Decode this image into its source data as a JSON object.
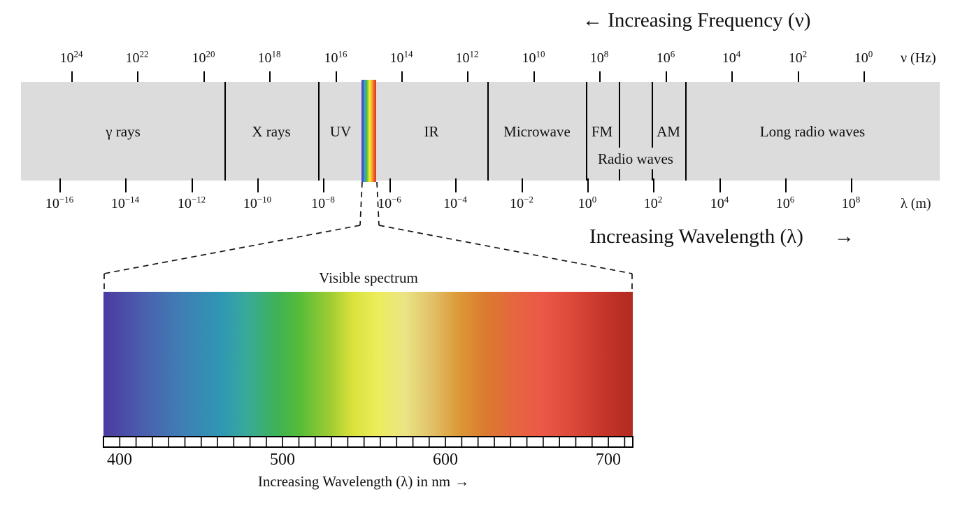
{
  "titles": {
    "frequency": "← Increasing Frequency (ν)",
    "wavelength": "Increasing Wavelength (λ)",
    "wavelength_arrow": "→"
  },
  "frequency_axis": {
    "unit": "ν (Hz)",
    "ticks": [
      {
        "base": "10",
        "exp": "24"
      },
      {
        "base": "10",
        "exp": "22"
      },
      {
        "base": "10",
        "exp": "20"
      },
      {
        "base": "10",
        "exp": "18"
      },
      {
        "base": "10",
        "exp": "16"
      },
      {
        "base": "10",
        "exp": "14"
      },
      {
        "base": "10",
        "exp": "12"
      },
      {
        "base": "10",
        "exp": "10"
      },
      {
        "base": "10",
        "exp": "8"
      },
      {
        "base": "10",
        "exp": "6"
      },
      {
        "base": "10",
        "exp": "4"
      },
      {
        "base": "10",
        "exp": "2"
      },
      {
        "base": "10",
        "exp": "0"
      }
    ]
  },
  "wavelength_axis": {
    "unit": "λ (m)",
    "ticks": [
      {
        "base": "10",
        "exp": "−16"
      },
      {
        "base": "10",
        "exp": "−14"
      },
      {
        "base": "10",
        "exp": "−12"
      },
      {
        "base": "10",
        "exp": "−10"
      },
      {
        "base": "10",
        "exp": "−8"
      },
      {
        "base": "10",
        "exp": "−6"
      },
      {
        "base": "10",
        "exp": "−4"
      },
      {
        "base": "10",
        "exp": "−2"
      },
      {
        "base": "10",
        "exp": "0"
      },
      {
        "base": "10",
        "exp": "2"
      },
      {
        "base": "10",
        "exp": "4"
      },
      {
        "base": "10",
        "exp": "6"
      },
      {
        "base": "10",
        "exp": "8"
      }
    ]
  },
  "spectrum_band": {
    "regions": {
      "gamma": "γ rays",
      "xray": "X rays",
      "uv": "UV",
      "ir": "IR",
      "microwave": "Microwave",
      "fm": "FM",
      "am": "AM",
      "radio": "Radio waves",
      "long_radio": "Long radio waves"
    }
  },
  "visible": {
    "title": "Visible spectrum",
    "nm_ticks": [
      "400",
      "500",
      "600",
      "700"
    ],
    "caption_text": "Increasing Wavelength (λ) in nm",
    "caption_arrow": "→"
  },
  "colors": {
    "band_gray": "#dcdcdc",
    "line_black": "#000000",
    "spectrum_stops": [
      "#4b3ba1",
      "#4a61ae",
      "#3f7fb5",
      "#2f96b4",
      "#38a99b",
      "#3fb254",
      "#55bc39",
      "#a0cd32",
      "#d9e23b",
      "#eded5d",
      "#ebe386",
      "#e1c167",
      "#dc9a38",
      "#db7b2f",
      "#e66540",
      "#ec5847",
      "#db4739",
      "#c43428",
      "#b22a20"
    ]
  }
}
